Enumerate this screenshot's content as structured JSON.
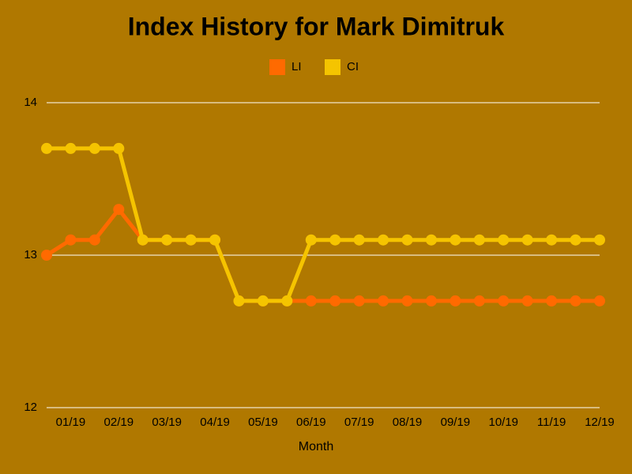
{
  "chart_data": {
    "type": "line",
    "title": "Index History for Mark Dimitruk",
    "x_label": "Month",
    "categories": [
      null,
      "01/19",
      null,
      "02/19",
      null,
      "03/19",
      null,
      "04/19",
      null,
      "05/19",
      null,
      "06/19",
      null,
      "07/19",
      null,
      "08/19",
      null,
      "09/19",
      null,
      "10/19",
      null,
      "11/19",
      null,
      "12/19"
    ],
    "series": [
      {
        "name": "LI",
        "color": "#ff6a00",
        "values": [
          13,
          13.1,
          13.1,
          13.3,
          13.1,
          13.1,
          13.1,
          13.1,
          12.7,
          12.7,
          12.7,
          12.7,
          12.7,
          12.7,
          12.7,
          12.7,
          12.7,
          12.7,
          12.7,
          12.7,
          12.7,
          12.7,
          12.7,
          12.7
        ]
      },
      {
        "name": "CI",
        "color": "#f5c400",
        "values": [
          13.7,
          13.7,
          13.7,
          13.7,
          13.1,
          13.1,
          13.1,
          13.1,
          12.7,
          12.7,
          12.7,
          13.1,
          13.1,
          13.1,
          13.1,
          13.1,
          13.1,
          13.1,
          13.1,
          13.1,
          13.1,
          13.1,
          13.1,
          13.1
        ]
      }
    ],
    "ylim": [
      12,
      14
    ],
    "yticks": [
      12,
      13,
      14
    ],
    "grid": true,
    "background": "#b07800",
    "legend": "top"
  }
}
